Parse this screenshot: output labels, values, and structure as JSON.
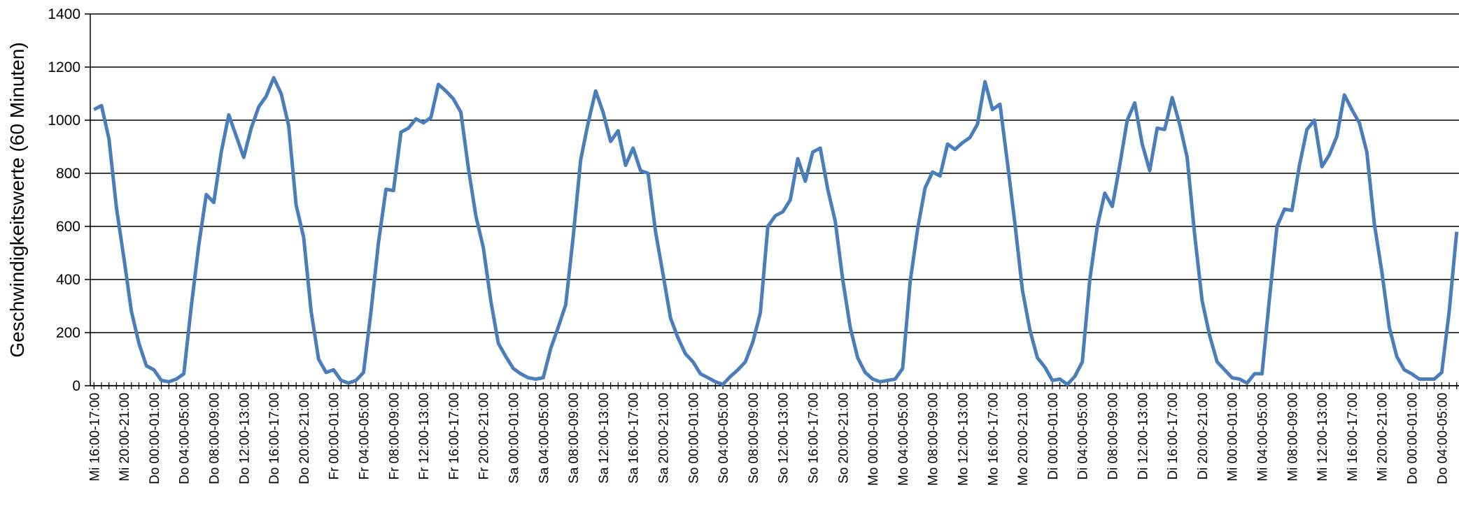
{
  "chart_data": {
    "type": "line",
    "y_label": "Geschwindigkeitswerte (60 Minuten)",
    "color": "#4a7ebb",
    "ylim": [
      0,
      1400
    ],
    "yticks": [
      0,
      200,
      400,
      600,
      800,
      1000,
      1200,
      1400
    ],
    "grid": true,
    "categories": [
      "Mi 16:00-17:00",
      null,
      null,
      null,
      "Mi 20:00-21:00",
      null,
      null,
      null,
      "Do 00:00-01:00",
      null,
      null,
      null,
      "Do 04:00-05:00",
      null,
      null,
      null,
      "Do 08:00-09:00",
      null,
      null,
      null,
      "Do 12:00-13:00",
      null,
      null,
      null,
      "Do 16:00-17:00",
      null,
      null,
      null,
      "Do 20:00-21:00",
      null,
      null,
      null,
      "Fr 00:00-01:00",
      null,
      null,
      null,
      "Fr 04:00-05:00",
      null,
      null,
      null,
      "Fr 08:00-09:00",
      null,
      null,
      null,
      "Fr 12:00-13:00",
      null,
      null,
      null,
      "Fr 16:00-17:00",
      null,
      null,
      null,
      "Fr 20:00-21:00",
      null,
      null,
      null,
      "Sa 00:00-01:00",
      null,
      null,
      null,
      "Sa 04:00-05:00",
      null,
      null,
      null,
      "Sa 08:00-09:00",
      null,
      null,
      null,
      "Sa 12:00-13:00",
      null,
      null,
      null,
      "Sa 16:00-17:00",
      null,
      null,
      null,
      "Sa 20:00-21:00",
      null,
      null,
      null,
      "So 00:00-01:00",
      null,
      null,
      null,
      "So 04:00-05:00",
      null,
      null,
      null,
      "So 08:00-09:00",
      null,
      null,
      null,
      "So 12:00-13:00",
      null,
      null,
      null,
      "So 16:00-17:00",
      null,
      null,
      null,
      "So 20:00-21:00",
      null,
      null,
      null,
      "Mo 00:00-01:00",
      null,
      null,
      null,
      "Mo 04:00-05:00",
      null,
      null,
      null,
      "Mo 08:00-09:00",
      null,
      null,
      null,
      "Mo 12:00-13:00",
      null,
      null,
      null,
      "Mo 16:00-17:00",
      null,
      null,
      null,
      "Mo 20:00-21:00",
      null,
      null,
      null,
      "Di 00:00-01:00",
      null,
      null,
      null,
      "Di 04:00-05:00",
      null,
      null,
      null,
      "Di 08:00-09:00",
      null,
      null,
      null,
      "Di 12:00-13:00",
      null,
      null,
      null,
      "Di 16:00-17:00",
      null,
      null,
      null,
      "Di 20:00-21:00",
      null,
      null,
      null,
      "Mi 00:00-01:00",
      null,
      null,
      null,
      "Mi 04:00-05:00",
      null,
      null,
      null,
      "Mi 08:00-09:00",
      null,
      null,
      null,
      "Mi 12:00-13:00",
      null,
      null,
      null,
      "Mi 16:00-17:00",
      null,
      null,
      null,
      "Mi 20:00-21:00",
      null,
      null,
      null,
      "Do 00:00-01:00",
      null,
      null,
      null,
      "Do 04:00-05:00",
      null,
      null
    ],
    "values": [
      1040,
      1055,
      930,
      670,
      480,
      280,
      160,
      75,
      60,
      20,
      15,
      25,
      45,
      300,
      530,
      720,
      690,
      880,
      1020,
      940,
      860,
      970,
      1050,
      1090,
      1160,
      1100,
      980,
      680,
      560,
      280,
      100,
      50,
      60,
      20,
      10,
      20,
      50,
      280,
      540,
      740,
      735,
      955,
      970,
      1005,
      990,
      1010,
      1135,
      1110,
      1080,
      1030,
      820,
      640,
      520,
      320,
      160,
      110,
      65,
      45,
      30,
      25,
      30,
      140,
      220,
      305,
      560,
      850,
      990,
      1110,
      1030,
      920,
      960,
      830,
      895,
      810,
      800,
      580,
      420,
      255,
      180,
      120,
      90,
      45,
      30,
      15,
      5,
      35,
      60,
      90,
      165,
      275,
      600,
      640,
      655,
      700,
      855,
      770,
      880,
      895,
      740,
      620,
      400,
      220,
      105,
      50,
      25,
      15,
      20,
      25,
      65,
      390,
      590,
      745,
      805,
      790,
      910,
      890,
      915,
      935,
      985,
      1145,
      1040,
      1060,
      840,
      610,
      360,
      210,
      105,
      70,
      20,
      25,
      5,
      35,
      90,
      400,
      600,
      725,
      675,
      830,
      1000,
      1065,
      910,
      810,
      970,
      965,
      1085,
      985,
      860,
      570,
      320,
      190,
      90,
      60,
      30,
      25,
      10,
      45,
      45,
      330,
      600,
      665,
      660,
      830,
      965,
      1000,
      825,
      870,
      940,
      1095,
      1040,
      990,
      880,
      610,
      430,
      220,
      110,
      60,
      45,
      25,
      25,
      25,
      50,
      280,
      580
    ]
  }
}
